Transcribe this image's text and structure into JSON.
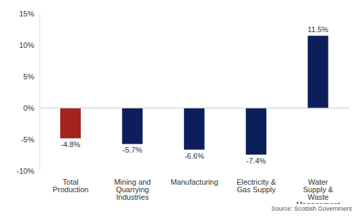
{
  "chart_data": {
    "type": "bar",
    "categories": [
      "Total Production",
      "Mining and Quarrying Industries",
      "Manufacturing",
      "Electricity & Gas Supply",
      "Water Supply & Waste Management"
    ],
    "values": [
      -4.8,
      -5.7,
      -6.6,
      -7.4,
      11.5
    ],
    "value_labels": [
      "-4.8%",
      "-5.7%",
      "-6.6%",
      "-7.4%",
      "11.5%"
    ],
    "colors": [
      "#a3231d",
      "#0c1f5b",
      "#0c1f5b",
      "#0c1f5b",
      "#0c1f5b"
    ],
    "ylim": [
      -10,
      15
    ],
    "yticks": [
      {
        "value": -10,
        "label": "-10%"
      },
      {
        "value": -5,
        "label": "-5%"
      },
      {
        "value": 0,
        "label": "0%"
      },
      {
        "value": 5,
        "label": "5%"
      },
      {
        "value": 10,
        "label": "10%"
      },
      {
        "value": 15,
        "label": "15%"
      }
    ],
    "grid": false,
    "data_labels": true,
    "annotations": [
      "Source: Scottish Government"
    ]
  }
}
